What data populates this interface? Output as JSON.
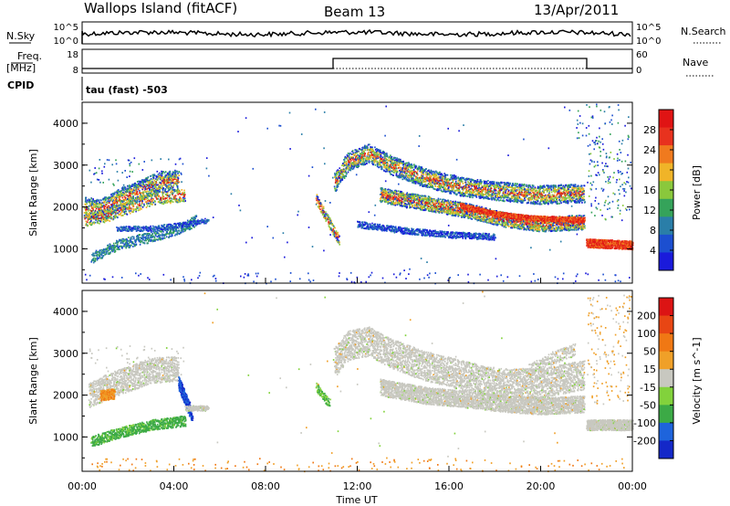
{
  "header": {
    "site": "Wallops Island (fitACF)",
    "beam": "Beam 13",
    "date": "13/Apr/2011"
  },
  "panels": {
    "nsky_label": "N.Sky",
    "nsky_ticks": [
      "10^5",
      "10^0"
    ],
    "nsearch_label": "N.Search",
    "nsearch_ticks": [
      "10^5",
      "10^0"
    ],
    "freq_label_line1": "Freq.",
    "freq_label_line2": "[MHz]",
    "freq_ticks": [
      "18",
      "8"
    ],
    "nave_label": "Nave",
    "nave_ticks": [
      "60",
      "0"
    ],
    "cpid_label": "CPID",
    "cpid_text": "tau (fast) -503"
  },
  "chart_data": [
    {
      "type": "heatmap",
      "title": "",
      "ylabel": "Slant Range [km]",
      "xlabel": "",
      "ylim": [
        180,
        4500
      ],
      "yticks": [
        "4000",
        "3000",
        "2000",
        "1000"
      ],
      "colorbar": {
        "label": "Power [dB]",
        "ticks": [
          "28",
          "24",
          "20",
          "16",
          "12",
          "8",
          "4"
        ],
        "colors": [
          "#1a1adb",
          "#1c4fd0",
          "#2a7ea8",
          "#35a35a",
          "#8ac83c",
          "#f0b428",
          "#f07a1e",
          "#e8321e",
          "#e01414"
        ]
      }
    },
    {
      "type": "heatmap",
      "title": "",
      "ylabel": "Slant Range [km]",
      "xlabel": "Time UT",
      "ylim": [
        180,
        4500
      ],
      "yticks": [
        "4000",
        "3000",
        "2000",
        "1000"
      ],
      "xticks": [
        "00:00",
        "04:00",
        "08:00",
        "12:00",
        "16:00",
        "20:00",
        "00:00"
      ],
      "colorbar": {
        "label": "Velocity [m s^-1]",
        "ticks": [
          "200",
          "100",
          "50",
          "15",
          "-15",
          "-50",
          "-100",
          "-200"
        ],
        "colors": [
          "#1428c8",
          "#1e64dc",
          "#3caa46",
          "#82d23c",
          "#c8c8c0",
          "#f0a028",
          "#f07814",
          "#e84614",
          "#dc1414"
        ]
      }
    }
  ]
}
